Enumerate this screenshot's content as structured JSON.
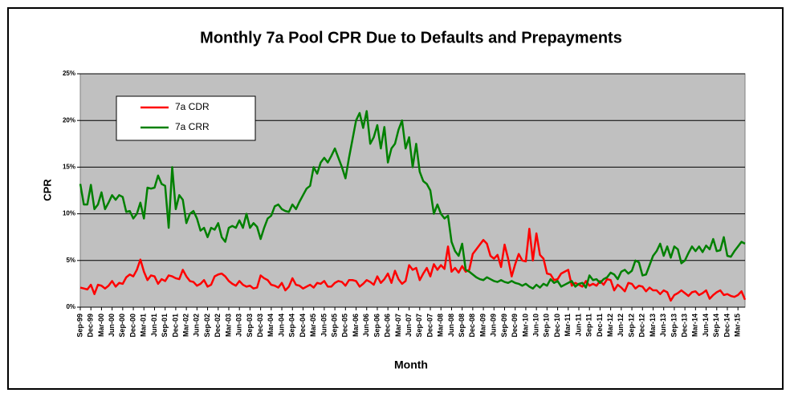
{
  "chart_data": {
    "type": "line",
    "title": "Monthly 7a Pool CPR Due to Defaults and Prepayments",
    "x_label": "Month",
    "y_label": "CPR",
    "grid": true,
    "legend": "upper-left",
    "background": "#c0c0c0",
    "ylim": [
      0,
      25
    ],
    "yticks": [
      {
        "value": 0,
        "label": "0%"
      },
      {
        "value": 5,
        "label": "5%"
      },
      {
        "value": 10,
        "label": "10%"
      },
      {
        "value": 15,
        "label": "15%"
      },
      {
        "value": 20,
        "label": "20%"
      },
      {
        "value": 25,
        "label": "25%"
      }
    ],
    "categories": [
      "Sep-99",
      null,
      null,
      "Dec-99",
      null,
      null,
      "Mar-00",
      null,
      null,
      "Jun-00",
      null,
      null,
      "Sep-00",
      null,
      null,
      "Dec-00",
      null,
      null,
      "Mar-01",
      null,
      null,
      "Jun-01",
      null,
      null,
      "Sep-01",
      null,
      null,
      "Dec-01",
      null,
      null,
      "Mar-02",
      null,
      null,
      "Jun-02",
      null,
      null,
      "Sep-02",
      null,
      null,
      "Dec-02",
      null,
      null,
      "Mar-03",
      null,
      null,
      "Jun-03",
      null,
      null,
      "Sep-03",
      null,
      null,
      "Dec-03",
      null,
      null,
      "Mar-04",
      null,
      null,
      "Jun-04",
      null,
      null,
      "Sep-04",
      null,
      null,
      "Dec-04",
      null,
      null,
      "Mar-05",
      null,
      null,
      "Jun-05",
      null,
      null,
      "Sep-05",
      null,
      null,
      "Dec-05",
      null,
      null,
      "Mar-06",
      null,
      null,
      "Jun-06",
      null,
      null,
      "Sep-06",
      null,
      null,
      "Dec-06",
      null,
      null,
      "Mar-07",
      null,
      null,
      "Jun-07",
      null,
      null,
      "Sep-07",
      null,
      null,
      "Dec-07",
      null,
      null,
      "Mar-08",
      null,
      null,
      "Jun-08",
      null,
      null,
      "Sep-08",
      null,
      null,
      "Dec-08",
      null,
      null,
      "Mar-09",
      null,
      null,
      "Jun-09",
      null,
      null,
      "Sep-09",
      null,
      null,
      "Dec-09",
      null,
      null,
      "Mar-10",
      null,
      null,
      "Jun-10",
      null,
      null,
      "Sep-10",
      null,
      null,
      "Dec-10",
      null,
      null,
      "Mar-11",
      null,
      null,
      "Jun-11",
      null,
      null,
      "Sep-11",
      null,
      null,
      "Dec-11",
      null,
      null,
      "Mar-12",
      null,
      null,
      "Jun-12",
      null,
      null,
      "Sep-12",
      null,
      null,
      "Dec-12",
      null,
      null,
      "Mar-13",
      null,
      null,
      "Jun-13",
      null,
      null,
      "Sep-13",
      null,
      null,
      "Dec-13",
      null,
      null,
      "Mar-14",
      null,
      null,
      "Jun-14",
      null,
      null,
      "Sep-14",
      null,
      null,
      "Dec-14",
      null,
      null,
      "Mar-15",
      null,
      null
    ],
    "series": [
      {
        "name": "7a CDR",
        "color": "#ff0000",
        "values": [
          2.1,
          2,
          1.9,
          2.4,
          1.4,
          2.4,
          2.3,
          2,
          2.3,
          2.8,
          2.2,
          2.6,
          2.5,
          3.2,
          3.5,
          3.3,
          4,
          5.1,
          3.8,
          2.9,
          3.4,
          3.3,
          2.5,
          3,
          2.8,
          3.4,
          3.3,
          3.1,
          3,
          4,
          3.3,
          2.8,
          2.7,
          2.3,
          2.5,
          2.9,
          2.2,
          2.4,
          3.3,
          3.5,
          3.6,
          3.3,
          2.8,
          2.5,
          2.3,
          2.8,
          2.4,
          2.2,
          2.3,
          2,
          2.1,
          3.4,
          3.1,
          2.9,
          2.4,
          2.3,
          2.1,
          2.6,
          1.8,
          2.2,
          3.1,
          2.4,
          2.3,
          2,
          2.2,
          2.4,
          2.1,
          2.6,
          2.5,
          2.8,
          2.2,
          2.2,
          2.6,
          2.8,
          2.7,
          2.3,
          2.9,
          2.9,
          2.8,
          2.2,
          2.5,
          2.9,
          2.7,
          2.4,
          3.3,
          2.6,
          3,
          3.6,
          2.6,
          3.9,
          3,
          2.5,
          2.8,
          4.5,
          4,
          4.2,
          2.9,
          3.6,
          4.2,
          3.3,
          4.6,
          4,
          4.5,
          4.1,
          6.5,
          3.8,
          4.2,
          3.7,
          4.4,
          3.8,
          4,
          5.7,
          6.2,
          6.7,
          7.2,
          6.8,
          5.5,
          5.2,
          5.6,
          4.3,
          6.7,
          5.2,
          3.3,
          4.6,
          5.7,
          5,
          4.9,
          8.4,
          5,
          7.9,
          5.6,
          5.2,
          3.6,
          3.5,
          2.9,
          3,
          3.6,
          3.8,
          4,
          2.3,
          2.6,
          2.4,
          2.2,
          2.8,
          2.3,
          2.5,
          2.3,
          2.8,
          2.4,
          3,
          2.9,
          1.8,
          2.4,
          2.1,
          1.7,
          2.6,
          2.5,
          2,
          2.3,
          2.2,
          1.7,
          2.1,
          1.8,
          1.8,
          1.4,
          1.8,
          1.6,
          0.7,
          1.3,
          1.5,
          1.8,
          1.5,
          1.2,
          1.6,
          1.7,
          1.3,
          1.5,
          1.8,
          0.9,
          1.3,
          1.6,
          1.8,
          1.3,
          1.4,
          1.2,
          1.1,
          1.3,
          1.7,
          0.8
        ]
      },
      {
        "name": "7a CRR",
        "color": "#008000",
        "values": [
          13.2,
          11,
          11,
          13.1,
          10.5,
          11,
          12.3,
          10.5,
          11.2,
          12,
          11.5,
          12,
          11.8,
          10.2,
          10.3,
          9.5,
          10,
          11.2,
          9.5,
          12.8,
          12.7,
          12.8,
          14.1,
          13.2,
          13,
          8.5,
          15,
          10.5,
          12,
          11.5,
          9,
          10,
          10.3,
          9.5,
          8.2,
          8.5,
          7.5,
          8.5,
          8.3,
          9,
          7.5,
          7,
          8.5,
          8.7,
          8.5,
          9.3,
          8.5,
          10,
          8.5,
          9,
          8.6,
          7.3,
          8.5,
          9.5,
          9.8,
          10.8,
          11,
          10.5,
          10.3,
          10.2,
          11,
          10.5,
          11.3,
          12,
          12.7,
          13,
          15,
          14.3,
          15.5,
          16,
          15.5,
          16.2,
          17,
          16,
          15,
          13.8,
          16,
          18,
          20,
          20.8,
          19.2,
          21,
          17.5,
          18.2,
          19.5,
          17,
          19.3,
          15.5,
          17,
          17.5,
          19,
          20,
          17,
          18.2,
          15,
          17.5,
          14.5,
          13.5,
          13.2,
          12.5,
          10,
          11,
          10,
          9.5,
          9.8,
          7,
          6,
          5.5,
          6.8,
          4,
          3.8,
          3.5,
          3.2,
          3,
          2.9,
          3.2,
          3,
          2.8,
          2.7,
          2.9,
          2.7,
          2.6,
          2.8,
          2.6,
          2.5,
          2.3,
          2.5,
          2.2,
          2,
          2.4,
          2.1,
          2.5,
          2.3,
          3,
          2.6,
          2.8,
          2.2,
          2.4,
          2.6,
          2.8,
          2.2,
          2.5,
          2.6,
          2.1,
          3.4,
          2.9,
          3,
          2.6,
          3,
          3.2,
          3.7,
          3.5,
          3,
          3.8,
          4,
          3.6,
          3.9,
          5,
          4.8,
          3.4,
          3.5,
          4.5,
          5.5,
          6,
          6.8,
          5.5,
          6.5,
          5.3,
          6.5,
          6.2,
          4.7,
          5,
          5.8,
          6.5,
          6,
          6.5,
          5.9,
          6.6,
          6.2,
          7.3,
          6,
          6.1,
          7.5,
          5.5,
          5.4,
          6,
          6.5,
          7,
          6.8
        ]
      }
    ]
  }
}
